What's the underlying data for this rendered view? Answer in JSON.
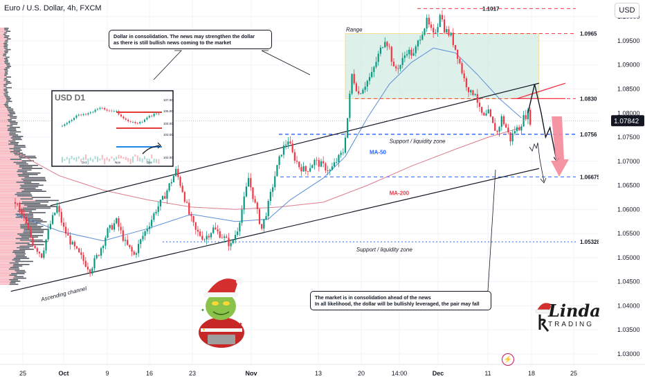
{
  "header": {
    "symbol_title": "Euro / U.S. Dollar, 4h, FXCM",
    "currency": "USD"
  },
  "callouts": {
    "top_line1": "Dollar in consolidation. The news may strengthen the dollar",
    "top_line2": "as there is still bullish news coming to the market",
    "bottom_line1": "The market is in consolidation ahead of the news",
    "bottom_line2": "In all likelihood, the dollar will be bullishly leveraged, the pair may fall"
  },
  "brand": {
    "top": "Linda",
    "bottom": "TRADING"
  },
  "colors": {
    "bull": "#089981",
    "bear": "#f23645",
    "level_red": "#f23645",
    "level_blue": "#2962ff",
    "ma50": "#5b8fd6",
    "ma200": "#e07b8a",
    "range_fill": "#d4ebe3",
    "arrow_red": "#f48a9a"
  },
  "chart_data": {
    "type": "candlestick",
    "instrument": "Euro / U.S. Dollar",
    "timeframe": "4h",
    "ylim": [
      1.0255,
      1.1075
    ],
    "yticks": [
      1.03,
      1.035,
      1.04,
      1.045,
      1.05,
      1.055,
      1.06,
      1.065,
      1.07,
      1.075,
      1.08,
      1.085,
      1.09,
      1.095,
      1.1
    ],
    "ytick_labels": [
      "1.03000",
      "1.03500",
      "1.04000",
      "1.04500",
      "1.05000",
      "1.05500",
      "1.06000",
      "1.06500",
      "1.07000",
      "1.07500",
      "1.08000",
      "1.08500",
      "1.09000",
      "1.09500",
      "1.10000"
    ],
    "xticks": [
      "25",
      "Oct",
      "9",
      "16",
      "23",
      "Nov",
      "13",
      "20",
      "14:00",
      "Dec",
      "11",
      "18",
      "25"
    ],
    "last_price": "1.07842",
    "last_price_value": 1.07842,
    "price_path": [
      [
        0,
        1.0615
      ],
      [
        4,
        1.058
      ],
      [
        8,
        1.053
      ],
      [
        12,
        1.0505
      ],
      [
        16,
        1.057
      ],
      [
        19,
        1.0605
      ],
      [
        22,
        1.056
      ],
      [
        26,
        1.0525
      ],
      [
        30,
        1.05
      ],
      [
        34,
        1.0475
      ],
      [
        38,
        1.051
      ],
      [
        42,
        1.0555
      ],
      [
        46,
        1.0575
      ],
      [
        50,
        1.053
      ],
      [
        54,
        1.0505
      ],
      [
        58,
        1.0545
      ],
      [
        62,
        1.058
      ],
      [
        64,
        1.06
      ],
      [
        67,
        1.062
      ],
      [
        70,
        1.065
      ],
      [
        73,
        1.068
      ],
      [
        76,
        1.064
      ],
      [
        79,
        1.059
      ],
      [
        82,
        1.0555
      ],
      [
        86,
        1.054
      ],
      [
        90,
        1.056
      ],
      [
        94,
        1.0545
      ],
      [
        98,
        1.0525
      ],
      [
        101,
        1.056
      ],
      [
        104,
        1.062
      ],
      [
        106,
        1.0665
      ],
      [
        109,
        1.061
      ],
      [
        112,
        1.056
      ],
      [
        115,
        1.061
      ],
      [
        118,
        1.067
      ],
      [
        121,
        1.072
      ],
      [
        124,
        1.0745
      ],
      [
        126,
        1.0715
      ],
      [
        129,
        1.069
      ],
      [
        132,
        1.068
      ],
      [
        136,
        1.07
      ],
      [
        140,
        1.069
      ],
      [
        143,
        1.068
      ],
      [
        146,
        1.07
      ],
      [
        149,
        1.072
      ],
      [
        151,
        1.079
      ],
      [
        153,
        1.088
      ],
      [
        156,
        1.084
      ],
      [
        159,
        1.086
      ],
      [
        162,
        1.088
      ],
      [
        165,
        1.092
      ],
      [
        168,
        1.0955
      ],
      [
        170,
        1.0935
      ],
      [
        172,
        1.089
      ],
      [
        175,
        1.09
      ],
      [
        178,
        1.093
      ],
      [
        181,
        1.092
      ],
      [
        184,
        1.096
      ],
      [
        187,
        1.099
      ],
      [
        190,
        1.096
      ],
      [
        192,
        1.0985
      ],
      [
        193,
        1.101
      ],
      [
        195,
        1.0975
      ],
      [
        198,
        1.096
      ],
      [
        201,
        1.092
      ],
      [
        204,
        1.087
      ],
      [
        207,
        1.084
      ],
      [
        209,
        1.0845
      ],
      [
        211,
        1.0805
      ],
      [
        213,
        1.079
      ],
      [
        215,
        1.08
      ],
      [
        217,
        1.0775
      ],
      [
        219,
        1.076
      ],
      [
        221,
        1.079
      ],
      [
        223,
        1.077
      ],
      [
        225,
        1.0745
      ],
      [
        227,
        1.0765
      ],
      [
        229,
        1.077
      ],
      [
        231,
        1.079
      ],
      [
        233,
        1.08
      ],
      [
        234,
        1.0784
      ]
    ],
    "ma50": [
      [
        0,
        1.059
      ],
      [
        20,
        1.0555
      ],
      [
        40,
        1.0535
      ],
      [
        60,
        1.056
      ],
      [
        80,
        1.059
      ],
      [
        100,
        1.0575
      ],
      [
        115,
        1.058
      ],
      [
        125,
        1.062
      ],
      [
        140,
        1.0665
      ],
      [
        150,
        1.071
      ],
      [
        160,
        1.079
      ],
      [
        170,
        1.086
      ],
      [
        180,
        1.0905
      ],
      [
        190,
        1.0935
      ],
      [
        200,
        1.0925
      ],
      [
        210,
        1.088
      ],
      [
        220,
        1.083
      ],
      [
        230,
        1.079
      ]
    ],
    "ma200": [
      [
        0,
        1.072
      ],
      [
        20,
        1.067
      ],
      [
        40,
        1.064
      ],
      [
        60,
        1.062
      ],
      [
        80,
        1.0605
      ],
      [
        100,
        1.06
      ],
      [
        120,
        1.0605
      ],
      [
        140,
        1.0615
      ],
      [
        160,
        1.065
      ],
      [
        180,
        1.069
      ],
      [
        200,
        1.0725
      ],
      [
        215,
        1.075
      ],
      [
        230,
        1.077
      ]
    ],
    "levels": [
      {
        "label": "1.1017",
        "value": 1.1017,
        "style": "red-dashed",
        "shown_label": "1.1017"
      },
      {
        "label": "1.0965",
        "value": 1.0965,
        "style": "red-dashed",
        "shown_label": "1.0965"
      },
      {
        "label": "1.0830",
        "value": 1.083,
        "style": "red-dashed",
        "shown_label": "1.0830"
      },
      {
        "label": "1.0756",
        "value": 1.0756,
        "style": "blue-dashed",
        "shown_label": "1.0756"
      },
      {
        "label": "1.06675",
        "value": 1.06675,
        "style": "blue-dashed",
        "shown_label": "1.06675"
      },
      {
        "label": "1.05328",
        "value": 1.05328,
        "style": "blue-dotted",
        "shown_label": "1.05328"
      }
    ],
    "range_box": {
      "label": "Range",
      "from": 150,
      "to": 238,
      "low": 1.083,
      "high": 1.0965
    },
    "channel": {
      "label": "Ascending channel",
      "lower": [
        [
          -2,
          1.043
        ],
        [
          238,
          1.0685
        ]
      ],
      "upper": [
        [
          16,
          1.0608
        ],
        [
          238,
          1.0862
        ]
      ]
    },
    "annotations": [
      {
        "text": "Support / liquidity zone",
        "anchor": [
          170,
          1.0738
        ]
      },
      {
        "text": "Support / liquidity zone",
        "anchor": [
          155,
          1.0513
        ]
      },
      {
        "text": "MA-50",
        "anchor": [
          161,
          1.0715
        ]
      },
      {
        "text": "MA-200",
        "anchor": [
          170,
          1.063
        ]
      }
    ],
    "forecast_path": [
      [
        233,
        1.08
      ],
      [
        236,
        1.086
      ],
      [
        239,
        1.08
      ],
      [
        241,
        1.075
      ],
      [
        243,
        1.077
      ],
      [
        246,
        1.07
      ]
    ],
    "inset": {
      "title": "USD D1",
      "yticks": [
        "107.00",
        "105.00",
        "104.00",
        "103.00",
        "102.00"
      ],
      "xticks": [
        "Oct",
        "Nov",
        "Dec"
      ]
    }
  }
}
